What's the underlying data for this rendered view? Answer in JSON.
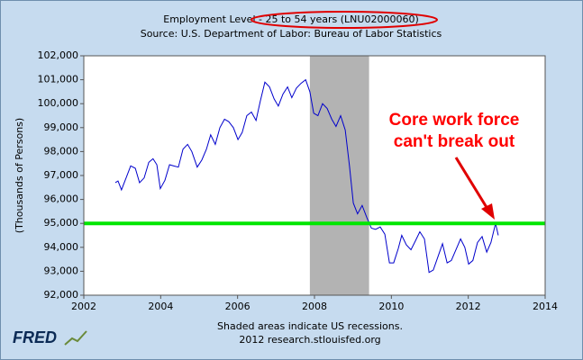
{
  "chart_data": {
    "type": "line",
    "title": "Employment Level - 25 to 54 years (LNU02000060)",
    "subtitle": "Source: U.S. Department of Labor: Bureau of Labor Statistics",
    "y_label": "(Thousands of Persons)",
    "note": "Shaded areas indicate US recessions.",
    "credit": "2012 research.stlouisfed.org",
    "logo": "FRED",
    "annotation": [
      "Core work force",
      "can't break out"
    ],
    "x": [
      2002.82,
      2002.89,
      2002.98,
      2003.1,
      2003.22,
      2003.34,
      2003.45,
      2003.57,
      2003.69,
      2003.8,
      2003.9,
      2003.99,
      2004.11,
      2004.23,
      2004.34,
      2004.46,
      2004.58,
      2004.7,
      2004.81,
      2004.95,
      2005.07,
      2005.19,
      2005.3,
      2005.42,
      2005.54,
      2005.66,
      2005.77,
      2005.89,
      2006.01,
      2006.12,
      2006.24,
      2006.36,
      2006.48,
      2006.59,
      2006.71,
      2006.83,
      2006.95,
      2007.06,
      2007.18,
      2007.3,
      2007.41,
      2007.53,
      2007.65,
      2007.77,
      2007.88,
      2007.98,
      2008.09,
      2008.21,
      2008.33,
      2008.45,
      2008.56,
      2008.68,
      2008.8,
      2008.91,
      2009.01,
      2009.12,
      2009.24,
      2009.36,
      2009.48,
      2009.59,
      2009.71,
      2009.83,
      2009.95,
      2010.06,
      2010.18,
      2010.27,
      2010.39,
      2010.51,
      2010.62,
      2010.74,
      2010.86,
      2010.98,
      2011.09,
      2011.21,
      2011.33,
      2011.45,
      2011.56,
      2011.68,
      2011.8,
      2011.91,
      2012.01,
      2012.12,
      2012.24,
      2012.36,
      2012.48,
      2012.59,
      2012.71,
      2012.78
    ],
    "series": [
      {
        "name": "Employment Level - 25 to 54 years",
        "color": "#0000cc",
        "values": [
          96700,
          96770,
          96400,
          96900,
          97400,
          97300,
          96700,
          96900,
          97550,
          97700,
          97450,
          96450,
          96800,
          97450,
          97400,
          97350,
          98100,
          98300,
          98000,
          97350,
          97650,
          98100,
          98700,
          98300,
          99000,
          99350,
          99250,
          99000,
          98500,
          98800,
          99500,
          99650,
          99300,
          100100,
          100900,
          100700,
          100200,
          99900,
          100400,
          100700,
          100250,
          100650,
          100850,
          101000,
          100500,
          99600,
          99500,
          100000,
          99800,
          99350,
          99050,
          99500,
          98900,
          97400,
          95850,
          95400,
          95750,
          95250,
          94800,
          94750,
          94850,
          94550,
          93350,
          93350,
          93950,
          94500,
          94100,
          93900,
          94250,
          94650,
          94350,
          92950,
          93050,
          93600,
          94150,
          93350,
          93450,
          93900,
          94350,
          94000,
          93300,
          93450,
          94200,
          94450,
          93800,
          94200,
          95000,
          94500
        ]
      }
    ],
    "recessions": [
      [
        2007.88,
        2009.42
      ]
    ],
    "recession_color": "#b3b3b3",
    "reference_line": {
      "value": 95000,
      "color": "#00e600"
    },
    "xlim": [
      2002,
      2014
    ],
    "xticks": [
      2002,
      2004,
      2006,
      2008,
      2010,
      2012,
      2014
    ],
    "ylim": [
      92000,
      102000
    ],
    "yticks": [
      {
        "value": 92000,
        "label": "92,000"
      },
      {
        "value": 93000,
        "label": "93,000"
      },
      {
        "value": 94000,
        "label": "94,000"
      },
      {
        "value": 95000,
        "label": "95,000"
      },
      {
        "value": 96000,
        "label": "96,000"
      },
      {
        "value": 97000,
        "label": "97,000"
      },
      {
        "value": 98000,
        "label": "98,000"
      },
      {
        "value": 99000,
        "label": "99,000"
      },
      {
        "value": 100000,
        "label": "100,000"
      },
      {
        "value": 101000,
        "label": "101,000"
      },
      {
        "value": 102000,
        "label": "102,000"
      }
    ],
    "grid": false
  }
}
